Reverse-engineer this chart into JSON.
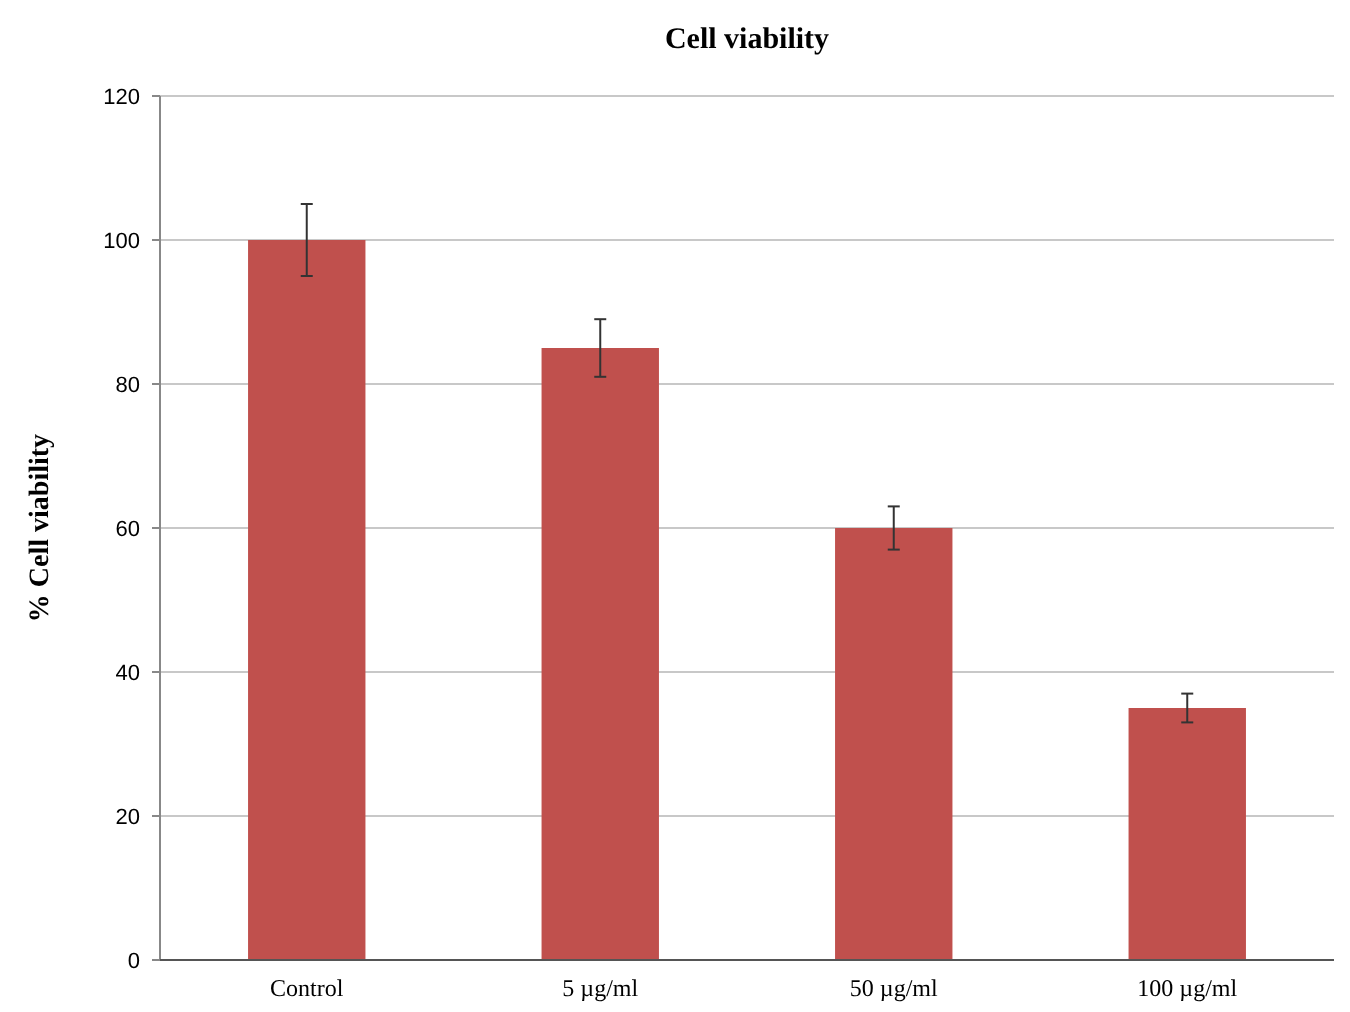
{
  "chart_data": {
    "type": "bar",
    "title": "Cell viability",
    "ylabel": "% Cell viability",
    "categories": [
      "Control",
      "5 µg/ml",
      "50 µg/ml",
      "100 µg/ml"
    ],
    "values": [
      100,
      85,
      60,
      35
    ],
    "errors": [
      5,
      4,
      3,
      2
    ],
    "color": "#c0504d",
    "ylim": [
      0,
      120
    ],
    "yticks": [
      0,
      20,
      40,
      60,
      80,
      100,
      120
    ],
    "grid": "y"
  }
}
